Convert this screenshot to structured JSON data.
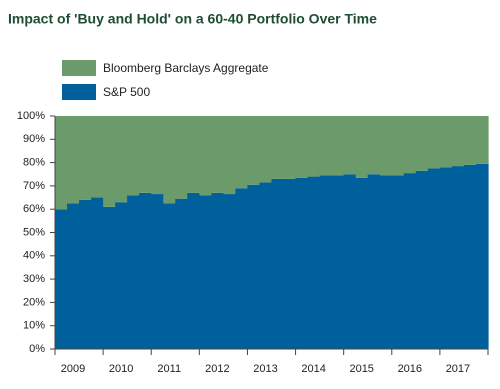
{
  "chart_data": {
    "type": "stacked-area-step",
    "title": "Impact of 'Buy and Hold' on a 60-40 Portfolio Over Time",
    "categories": [
      null,
      "2009",
      null,
      null,
      null,
      "2010",
      null,
      null,
      null,
      "2011",
      null,
      null,
      null,
      "2012",
      null,
      null,
      null,
      "2013",
      null,
      null,
      null,
      "2014",
      null,
      null,
      null,
      "2015",
      null,
      null,
      null,
      "2016",
      null,
      null,
      null,
      "2017",
      null,
      null
    ],
    "series": [
      {
        "name": "S&P 500",
        "color": "#00609c",
        "values": [
          60,
          62.5,
          64,
          65,
          61,
          63,
          66,
          67,
          66.5,
          62.5,
          64.5,
          67,
          66,
          67,
          66.5,
          69,
          70.5,
          71.5,
          73,
          73,
          73.5,
          74,
          74.5,
          74.5,
          75,
          73.5,
          75,
          74.5,
          74.5,
          75.5,
          76.5,
          77.5,
          78,
          78.5,
          79,
          79.5
        ]
      },
      {
        "name": "Bloomberg Barclays Aggregate",
        "color": "#6b9a6b",
        "values": [
          40,
          37.5,
          36,
          35,
          39,
          37,
          34,
          33,
          33.5,
          37.5,
          35.5,
          33,
          34,
          33,
          33.5,
          31,
          29.5,
          28.5,
          27,
          27,
          26.5,
          26,
          25.5,
          25.5,
          25,
          26.5,
          25,
          25.5,
          25.5,
          24.5,
          23.5,
          22.5,
          22,
          21.5,
          21,
          20.5
        ]
      }
    ],
    "ylim": [
      0,
      100
    ],
    "yticks": [
      {
        "value": 0,
        "label": "0%"
      },
      {
        "value": 10,
        "label": "10%"
      },
      {
        "value": 20,
        "label": "20%"
      },
      {
        "value": 30,
        "label": "30%"
      },
      {
        "value": 40,
        "label": "40%"
      },
      {
        "value": 50,
        "label": "50%"
      },
      {
        "value": 60,
        "label": "60%"
      },
      {
        "value": 70,
        "label": "70%"
      },
      {
        "value": 80,
        "label": "80%"
      },
      {
        "value": 90,
        "label": "90%"
      },
      {
        "value": 100,
        "label": "100%"
      }
    ]
  }
}
